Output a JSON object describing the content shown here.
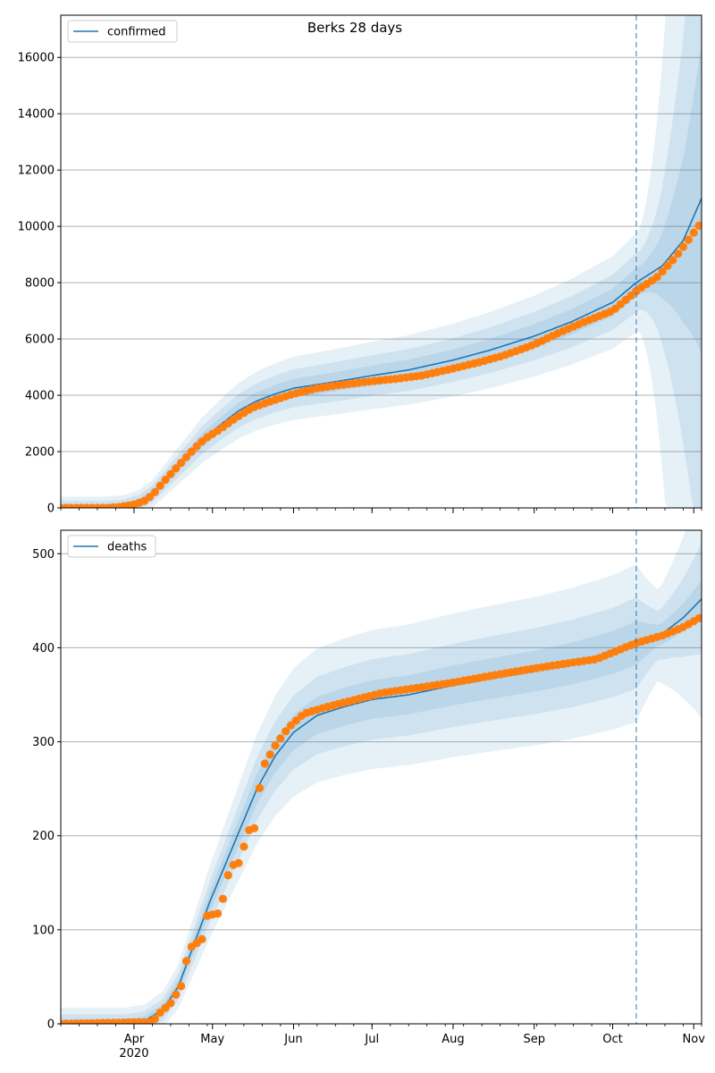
{
  "figure": {
    "title": "Berks 28 days"
  },
  "colors": {
    "model": "#1f77b4",
    "observed": "#ff7f0e",
    "band": "#1f77b4",
    "grid": "#b0b0b0",
    "divider": "#1f77b4"
  },
  "x_axis": {
    "labels": [
      {
        "date": "2020-04-01",
        "label": "Apr",
        "sublabel": "2020"
      },
      {
        "date": "2020-05-01",
        "label": "May"
      },
      {
        "date": "2020-06-01",
        "label": "Jun"
      },
      {
        "date": "2020-07-01",
        "label": "Jul"
      },
      {
        "date": "2020-08-01",
        "label": "Aug"
      },
      {
        "date": "2020-09-01",
        "label": "Sep"
      },
      {
        "date": "2020-10-01",
        "label": "Oct"
      },
      {
        "date": "2020-11-01",
        "label": "Nov"
      }
    ],
    "xlim": [
      "2020-03-04",
      "2020-11-04"
    ],
    "forecast_start": "2020-10-10",
    "minor_ticks": "weekly"
  },
  "chart_data": [
    {
      "type": "line",
      "legend": {
        "label": "confirmed",
        "position": "top-left"
      },
      "ylim": [
        0,
        17500
      ],
      "yticks": [
        0,
        2000,
        4000,
        6000,
        8000,
        10000,
        12000,
        14000,
        16000
      ],
      "grid": "horizontal",
      "model_series": {
        "name": "confirmed",
        "points": [
          [
            "2020-03-04",
            0
          ],
          [
            "2020-03-20",
            0
          ],
          [
            "2020-03-28",
            40
          ],
          [
            "2020-04-03",
            200
          ],
          [
            "2020-04-08",
            500
          ],
          [
            "2020-04-14",
            1100
          ],
          [
            "2020-04-20",
            1700
          ],
          [
            "2020-04-27",
            2400
          ],
          [
            "2020-05-04",
            2950
          ],
          [
            "2020-05-11",
            3450
          ],
          [
            "2020-05-18",
            3800
          ],
          [
            "2020-05-25",
            4050
          ],
          [
            "2020-06-01",
            4250
          ],
          [
            "2020-06-15",
            4450
          ],
          [
            "2020-07-01",
            4700
          ],
          [
            "2020-07-15",
            4900
          ],
          [
            "2020-08-01",
            5250
          ],
          [
            "2020-08-15",
            5600
          ],
          [
            "2020-09-01",
            6100
          ],
          [
            "2020-09-15",
            6600
          ],
          [
            "2020-10-01",
            7300
          ],
          [
            "2020-10-10",
            8000
          ],
          [
            "2020-10-20",
            8600
          ],
          [
            "2020-10-28",
            9500
          ],
          [
            "2020-11-04",
            11000
          ]
        ]
      },
      "bands": [
        {
          "rel": 0.05,
          "abs": 120,
          "fut_rel": 0.08
        },
        {
          "rel": 0.1,
          "abs": 250,
          "fut_rel": 0.2
        },
        {
          "rel": 0.17,
          "abs": 400,
          "fut_rel": 0.55
        }
      ],
      "observed": {
        "points": [
          [
            "2020-03-04",
            0
          ],
          [
            "2020-03-22",
            0
          ],
          [
            "2020-03-26",
            30
          ],
          [
            "2020-04-01",
            120
          ],
          [
            "2020-04-05",
            250
          ],
          [
            "2020-04-08",
            450
          ],
          [
            "2020-04-12",
            900
          ],
          [
            "2020-04-16",
            1300
          ],
          [
            "2020-04-20",
            1700
          ],
          [
            "2020-04-24",
            2100
          ],
          [
            "2020-04-28",
            2450
          ],
          [
            "2020-05-04",
            2800
          ],
          [
            "2020-05-10",
            3200
          ],
          [
            "2020-05-16",
            3550
          ],
          [
            "2020-05-22",
            3750
          ],
          [
            "2020-06-01",
            4050
          ],
          [
            "2020-06-10",
            4250
          ],
          [
            "2020-06-20",
            4380
          ],
          [
            "2020-07-01",
            4500
          ],
          [
            "2020-07-10",
            4580
          ],
          [
            "2020-07-20",
            4700
          ],
          [
            "2020-08-01",
            4950
          ],
          [
            "2020-08-10",
            5150
          ],
          [
            "2020-08-20",
            5400
          ],
          [
            "2020-09-01",
            5800
          ],
          [
            "2020-09-10",
            6200
          ],
          [
            "2020-09-20",
            6600
          ],
          [
            "2020-10-01",
            7000
          ],
          [
            "2020-10-10",
            7700
          ],
          [
            "2020-10-18",
            8200
          ],
          [
            "2020-10-25",
            8900
          ],
          [
            "2020-11-04",
            10150
          ]
        ]
      }
    },
    {
      "type": "line",
      "legend": {
        "label": "deaths",
        "position": "top-left"
      },
      "ylim": [
        0,
        525
      ],
      "yticks": [
        0,
        100,
        200,
        300,
        400,
        500
      ],
      "grid": "horizontal",
      "model_series": {
        "name": "deaths",
        "points": [
          [
            "2020-03-04",
            0
          ],
          [
            "2020-03-28",
            0
          ],
          [
            "2020-04-05",
            3
          ],
          [
            "2020-04-12",
            15
          ],
          [
            "2020-04-18",
            40
          ],
          [
            "2020-04-24",
            85
          ],
          [
            "2020-04-30",
            130
          ],
          [
            "2020-05-06",
            170
          ],
          [
            "2020-05-12",
            210
          ],
          [
            "2020-05-18",
            250
          ],
          [
            "2020-05-25",
            285
          ],
          [
            "2020-06-01",
            310
          ],
          [
            "2020-06-10",
            328
          ],
          [
            "2020-06-20",
            337
          ],
          [
            "2020-07-01",
            345
          ],
          [
            "2020-07-15",
            350
          ],
          [
            "2020-08-01",
            360
          ],
          [
            "2020-08-15",
            367
          ],
          [
            "2020-09-01",
            375
          ],
          [
            "2020-09-15",
            383
          ],
          [
            "2020-10-01",
            395
          ],
          [
            "2020-10-10",
            405
          ],
          [
            "2020-10-20",
            415
          ],
          [
            "2020-10-28",
            432
          ],
          [
            "2020-11-04",
            452
          ]
        ]
      },
      "bands": [
        {
          "rel": 0.045,
          "abs": 5,
          "fut_rel": 0.01
        },
        {
          "rel": 0.095,
          "abs": 10,
          "fut_rel": 0.04
        },
        {
          "rel": 0.165,
          "abs": 17,
          "fut_rel": 0.095
        }
      ],
      "observed": {
        "points": [
          [
            "2020-03-04",
            0
          ],
          [
            "2020-04-08",
            2
          ],
          [
            "2020-04-11",
            12
          ],
          [
            "2020-04-15",
            22
          ],
          [
            "2020-04-19",
            40
          ],
          [
            "2020-04-22",
            80
          ],
          [
            "2020-04-27",
            90
          ],
          [
            "2020-04-29",
            115
          ],
          [
            "2020-05-04",
            118
          ],
          [
            "2020-05-06",
            148
          ],
          [
            "2020-05-08",
            168
          ],
          [
            "2020-05-12",
            172
          ],
          [
            "2020-05-14",
            205
          ],
          [
            "2020-05-17",
            208
          ],
          [
            "2020-05-20",
            272
          ],
          [
            "2020-05-25",
            296
          ],
          [
            "2020-05-30",
            315
          ],
          [
            "2020-06-05",
            330
          ],
          [
            "2020-06-15",
            338
          ],
          [
            "2020-06-25",
            345
          ],
          [
            "2020-07-05",
            352
          ],
          [
            "2020-07-20",
            358
          ],
          [
            "2020-08-01",
            363
          ],
          [
            "2020-08-15",
            370
          ],
          [
            "2020-09-01",
            378
          ],
          [
            "2020-09-15",
            384
          ],
          [
            "2020-09-25",
            388
          ],
          [
            "2020-10-01",
            395
          ],
          [
            "2020-10-10",
            405
          ],
          [
            "2020-10-20",
            413
          ],
          [
            "2020-10-28",
            422
          ],
          [
            "2020-11-04",
            433
          ]
        ]
      }
    }
  ]
}
